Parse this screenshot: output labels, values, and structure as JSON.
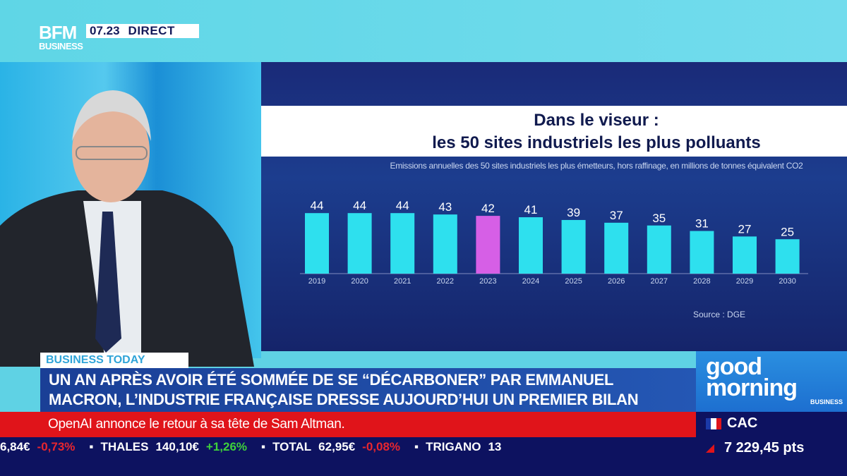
{
  "header": {
    "logo": "BFM BUSINESS",
    "logo_top": "BFM",
    "logo_bottom": "BUSINESS",
    "time": "07.23",
    "live": "DIRECT"
  },
  "chart_data": {
    "type": "bar",
    "title": "Dans le viseur : les 50 sites industriels les plus polluants",
    "title_line1": "Dans le viseur :",
    "title_line2": "les 50 sites industriels les plus polluants",
    "subtitle": "Emissions annuelles des 50 sites industriels les plus émetteurs, hors raffinage, en millions de tonnes équivalent CO2",
    "categories": [
      "2019",
      "2020",
      "2021",
      "2022",
      "2023",
      "2024",
      "2025",
      "2026",
      "2027",
      "2028",
      "2029",
      "2030"
    ],
    "values": [
      44,
      44,
      44,
      43,
      42,
      41,
      39,
      37,
      35,
      31,
      27,
      25
    ],
    "highlight": "2023",
    "colors": {
      "bar": "#2ee0ee",
      "highlight": "#d65fe6"
    },
    "source": "Source : DGE",
    "ylim": [
      0,
      50
    ]
  },
  "banner": {
    "tag": "BUSINESS TODAY",
    "headline_line1": "UN AN APRÈS AVOIR ÉTÉ SOMMÉE DE SE “DÉCARBONER” PAR EMMANUEL",
    "headline_line2": "MACRON, L’INDUSTRIE FRANÇAISE DRESSE AUJOURD’HUI UN PREMIER BILAN",
    "news": "OpenAI annonce le retour à sa tête de Sam Altman."
  },
  "ticker": [
    {
      "name": "",
      "price": "6,84€",
      "change": "-0,73%",
      "dir": "down"
    },
    {
      "name": "THALES",
      "price": "140,10€",
      "change": "+1,26%",
      "dir": "up"
    },
    {
      "name": "TOTAL",
      "price": "62,95€",
      "change": "-0,08%",
      "dir": "down"
    },
    {
      "name": "TRIGANO",
      "price": "13",
      "change": "",
      "dir": ""
    }
  ],
  "show": {
    "name": "good morning",
    "sub": "BUSINESS"
  },
  "index": {
    "name": "CAC",
    "value": "7 229,45 pts"
  }
}
